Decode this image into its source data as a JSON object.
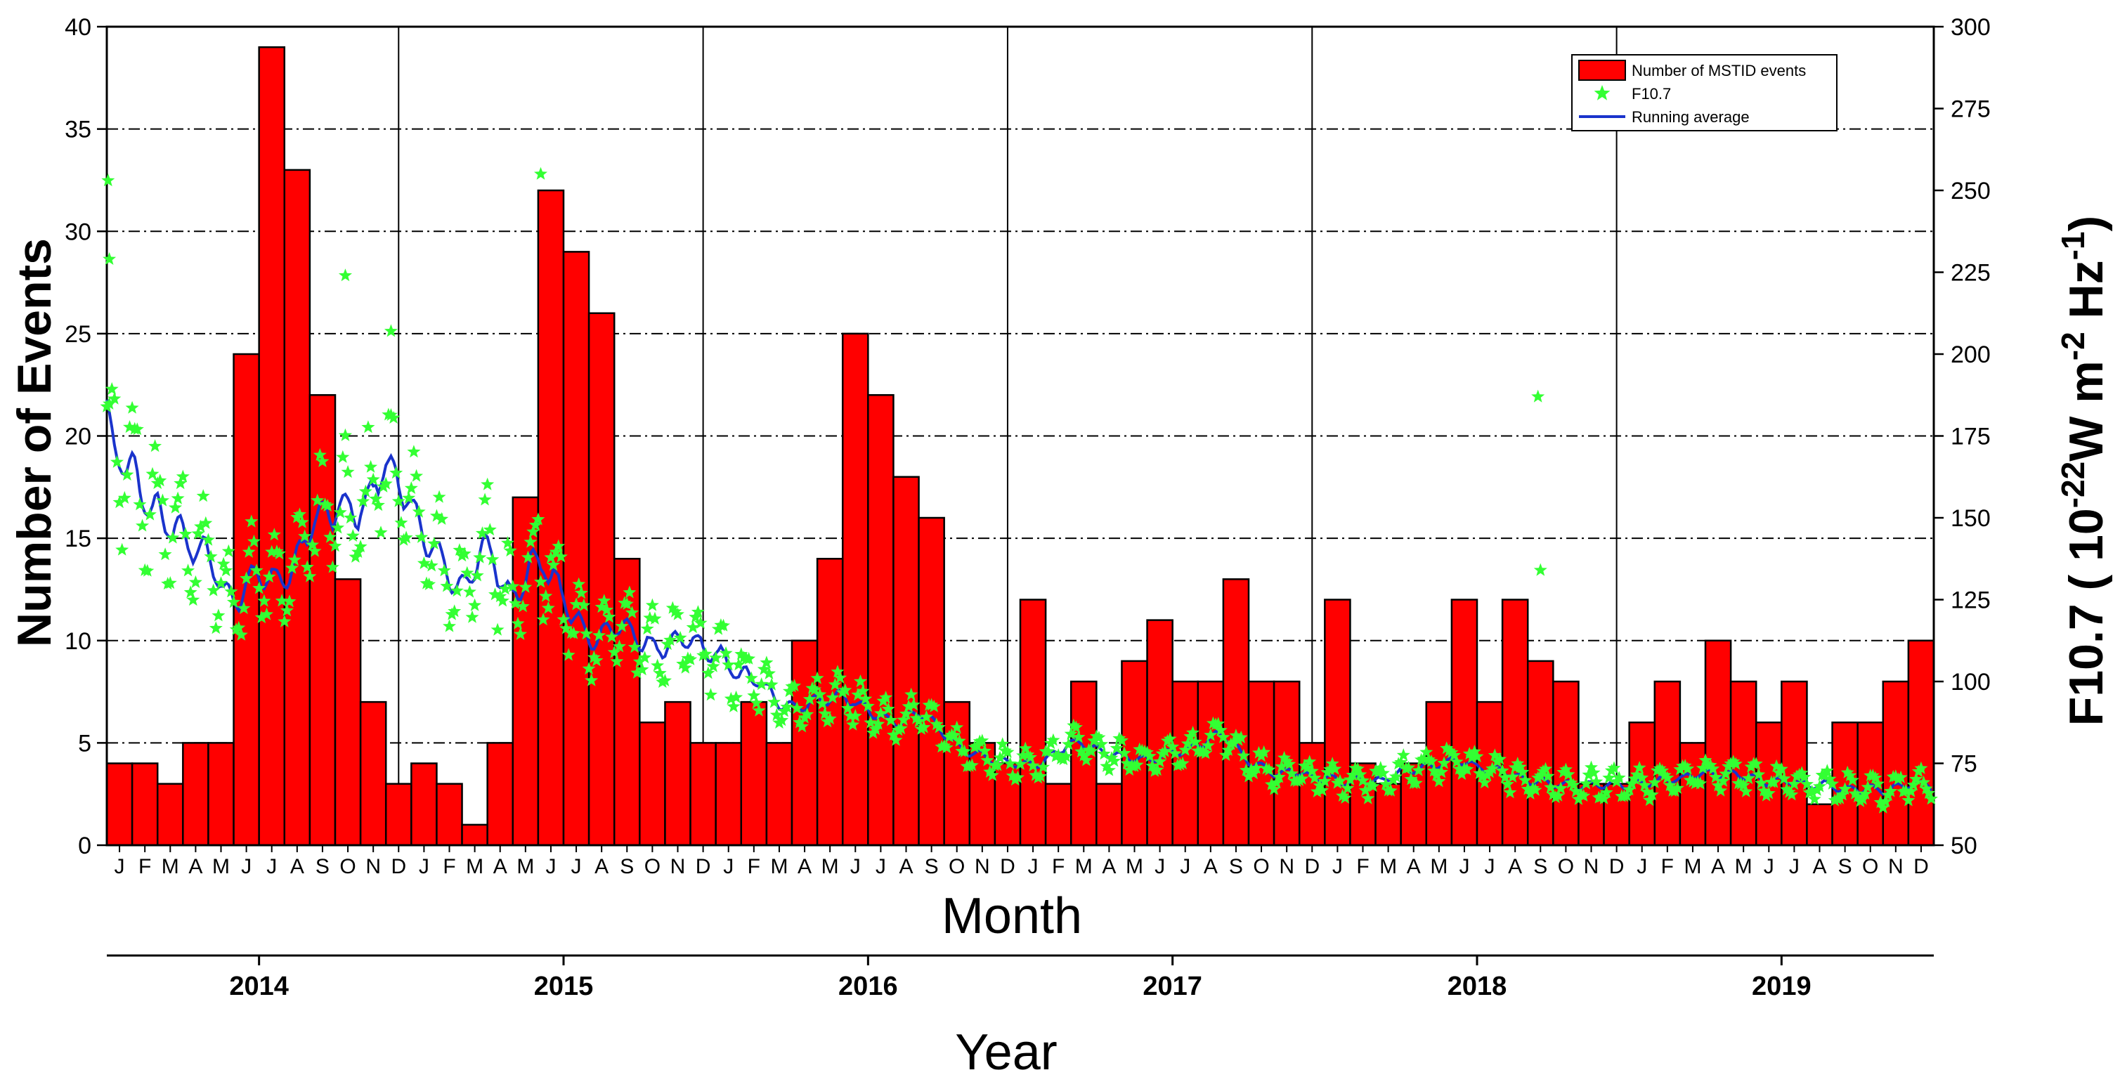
{
  "chart_data": {
    "type": "bar",
    "title": "",
    "xlabel": "Month",
    "secondary_xlabel": "Year",
    "ylabel": "Number of Events",
    "y2label": {
      "prefix": "F10.7 ( 10",
      "exp1": "-22",
      "mid1": "W m",
      "exp2": "-2",
      "mid2": " Hz",
      "exp3": "-1",
      "suffix": ")"
    },
    "ylim": [
      0,
      40
    ],
    "y_ticks": [
      "0",
      "5",
      "10",
      "15",
      "20",
      "25",
      "30",
      "35",
      "40"
    ],
    "y2lim": [
      50,
      300
    ],
    "y2_ticks": [
      "50",
      "75",
      "100",
      "125",
      "150",
      "175",
      "200",
      "225",
      "250",
      "275",
      "300"
    ],
    "years": [
      "2014",
      "2015",
      "2016",
      "2017",
      "2018",
      "2019"
    ],
    "categories": [
      "J",
      "F",
      "M",
      "A",
      "M",
      "J",
      "J",
      "A",
      "S",
      "O",
      "N",
      "D",
      "J",
      "F",
      "M",
      "A",
      "M",
      "J",
      "J",
      "A",
      "S",
      "O",
      "N",
      "D",
      "J",
      "F",
      "M",
      "A",
      "M",
      "J",
      "J",
      "A",
      "S",
      "O",
      "N",
      "D",
      "J",
      "F",
      "M",
      "A",
      "M",
      "J",
      "J",
      "A",
      "S",
      "O",
      "N",
      "D",
      "J",
      "F",
      "M",
      "A",
      "M",
      "J",
      "J",
      "A",
      "S",
      "O",
      "N",
      "D",
      "J",
      "F",
      "M",
      "A",
      "M",
      "J",
      "J",
      "A",
      "S",
      "O",
      "N",
      "D"
    ],
    "series": [
      {
        "name": "Number of MSTID events",
        "type": "bar",
        "color": "#ff0000",
        "values": [
          4,
          4,
          3,
          5,
          5,
          24,
          39,
          33,
          22,
          13,
          7,
          3,
          4,
          3,
          1,
          5,
          17,
          32,
          29,
          26,
          14,
          6,
          7,
          5,
          5,
          7,
          5,
          10,
          14,
          25,
          22,
          18,
          16,
          7,
          5,
          4,
          12,
          3,
          8,
          3,
          9,
          11,
          8,
          8,
          13,
          8,
          8,
          5,
          12,
          4,
          3,
          4,
          7,
          12,
          7,
          12,
          9,
          8,
          3,
          3,
          6,
          8,
          5,
          10,
          8,
          6,
          8,
          2,
          6,
          6,
          8,
          10
        ]
      },
      {
        "name": "F10.7",
        "type": "scatter",
        "marker": "star",
        "color": "#33ff33",
        "monthly_mean": [
          170,
          163,
          150,
          145,
          137,
          122,
          138,
          128,
          148,
          152,
          150,
          168,
          152,
          138,
          128,
          142,
          125,
          140,
          124,
          112,
          118,
          112,
          110,
          112,
          108,
          102,
          98,
          92,
          94,
          96,
          90,
          88,
          90,
          84,
          78,
          76,
          75,
          76,
          82,
          80,
          77,
          76,
          78,
          80,
          84,
          76,
          72,
          72,
          70,
          70,
          70,
          72,
          74,
          76,
          74,
          72,
          70,
          69,
          68,
          68,
          68,
          69,
          70,
          72,
          72,
          70,
          69,
          69,
          68,
          66,
          67,
          69
        ]
      },
      {
        "name": "Running average",
        "type": "line",
        "color": "#1a33cc"
      }
    ],
    "legend": {
      "position": "top-right"
    }
  }
}
